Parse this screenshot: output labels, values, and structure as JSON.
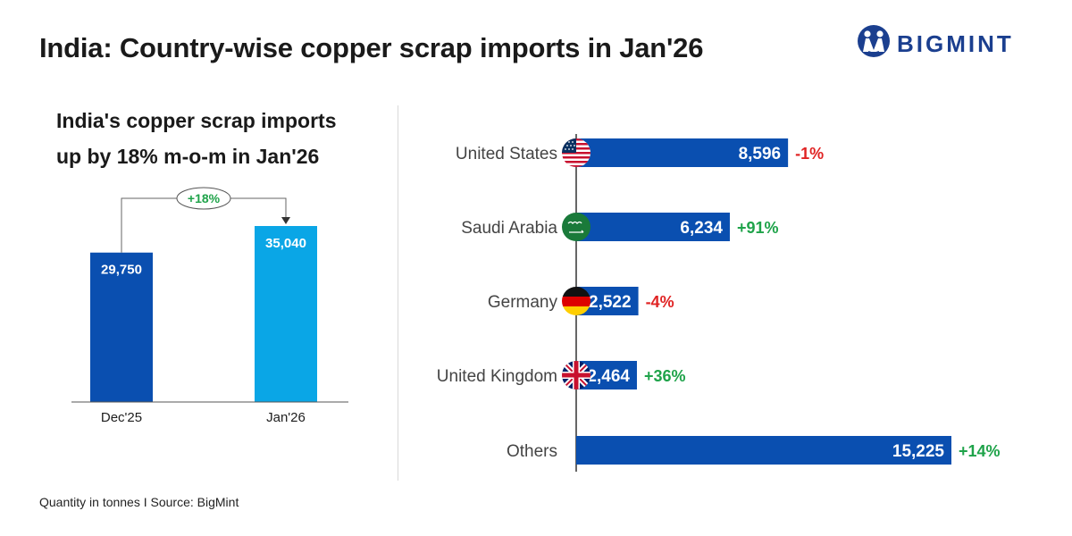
{
  "title": "India: Country-wise copper scrap imports in Jan'26",
  "logo": {
    "text": "BIGMINT"
  },
  "footer": "Quantity in tonnes  I  Source: BigMint",
  "colors": {
    "dark_blue": "#0a4fb0",
    "light_blue": "#0aa6e6",
    "positive": "#1fa34a",
    "negative": "#e02424"
  },
  "chart_data": [
    {
      "type": "bar",
      "subtitle_lines": [
        "India's copper scrap imports",
        "up by 18% m-o-m in Jan'26"
      ],
      "categories": [
        "Dec'25",
        "Jan'26"
      ],
      "values": [
        29750,
        35040
      ],
      "value_labels": [
        "29,750",
        "35,040"
      ],
      "annotation": "+18%",
      "bar_colors": [
        "#0a4fb0",
        "#0aa6e6"
      ]
    },
    {
      "type": "bar",
      "orientation": "horizontal",
      "categories": [
        "United States",
        "Saudi Arabia",
        "Germany",
        "United Kingdom",
        "Others"
      ],
      "values": [
        8596,
        6234,
        2522,
        2464,
        15225
      ],
      "value_labels": [
        "8,596",
        "6,234",
        "2,522",
        "2,464",
        "15,225"
      ],
      "changes": [
        "-1%",
        "+91%",
        "-4%",
        "+36%",
        "+14%"
      ],
      "flags": [
        "us-flag-icon",
        "saudi-flag-icon",
        "germany-flag-icon",
        "uk-flag-icon",
        ""
      ]
    }
  ]
}
